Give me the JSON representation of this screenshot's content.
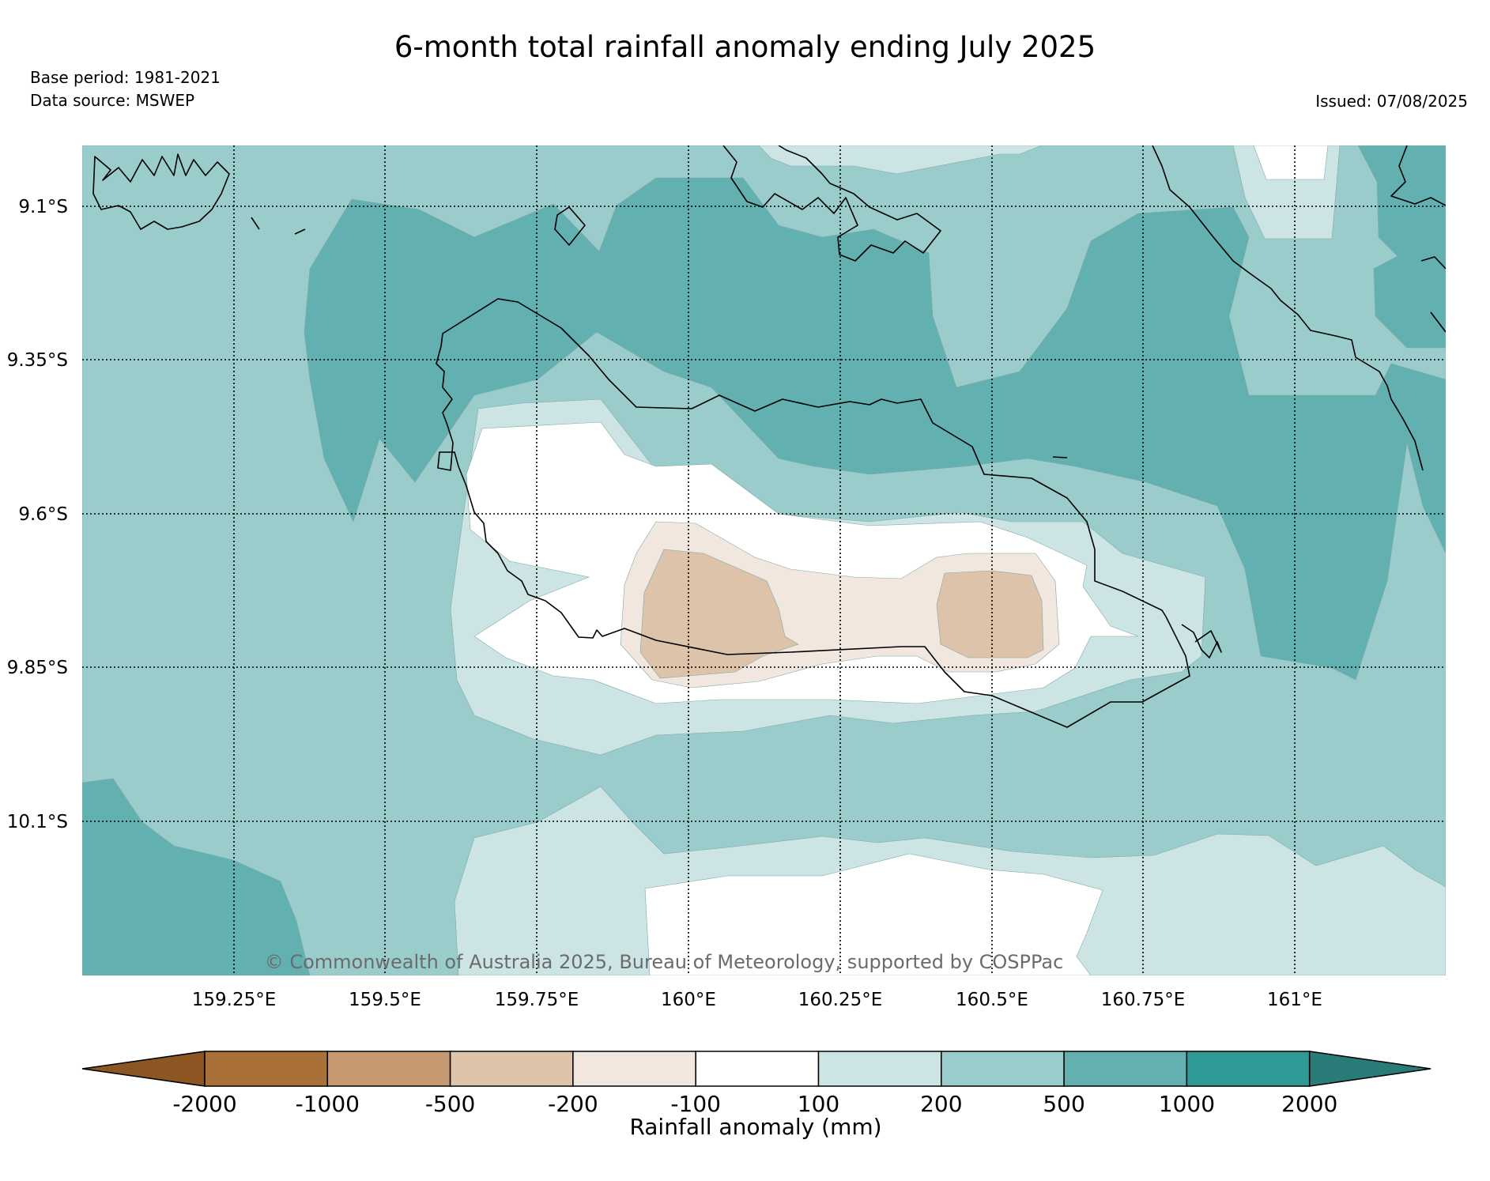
{
  "title": "6-month total rainfall anomaly ending July 2025",
  "meta": {
    "base_period": "Base period: 1981-2021",
    "data_source": "Data source: MSWEP",
    "issued": "Issued: 07/08/2025"
  },
  "map": {
    "lat_labels": [
      "9.1°S",
      "9.35°S",
      "9.6°S",
      "9.85°S",
      "10.1°S"
    ],
    "lon_labels": [
      "159.25°E",
      "159.5°E",
      "159.75°E",
      "160°E",
      "160.25°E",
      "160.5°E",
      "160.75°E",
      "161°E"
    ],
    "copyright": "© Commonwealth of Australia 2025, Bureau of Meteorology, supported by COSPPac",
    "colors": {
      "c_100_200": "#cce5e4",
      "c_200_500": "#9acccc",
      "c_500_1000": "#63b0b1",
      "c_neg100_100": "#ffffff",
      "c_neg200_neg100": "#f1e7de",
      "c_neg500_neg200": "#dcc3aa",
      "coast": "#000000"
    }
  },
  "colorbar": {
    "title": "Rainfall anomaly (mm)",
    "ticks": [
      "-2000",
      "-1000",
      "-500",
      "-200",
      "-100",
      "100",
      "200",
      "500",
      "1000",
      "2000"
    ],
    "colors": [
      "#8b5622",
      "#a97138",
      "#c49970",
      "#dcc3aa",
      "#f1e7de",
      "#ffffff",
      "#cce5e4",
      "#9acccc",
      "#63b0b1",
      "#2f9b96",
      "#2a7a78"
    ]
  }
}
